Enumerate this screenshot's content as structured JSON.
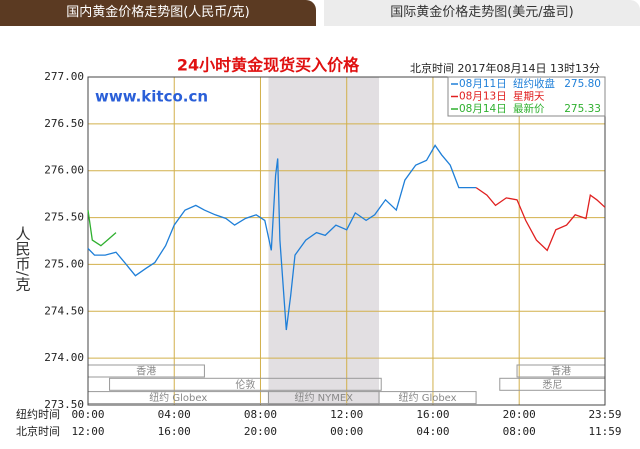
{
  "tabs": [
    "国内黄金价格走势图(人民币/克)",
    "国际黄金价格走势图(美元/盎司)"
  ],
  "chart_data": {
    "type": "line",
    "title": "24小时黄金现货买入价格",
    "timestamp": "北京时间 2017年08月14日 13时13分",
    "watermark": "www.kitco.cn",
    "y_label": "人民币/克",
    "ylim": [
      273.5,
      277.0
    ],
    "yticks": [
      {
        "value": 273.5,
        "label": "273.50"
      },
      {
        "value": 274.0,
        "label": "274.00"
      },
      {
        "value": 274.5,
        "label": "274.50"
      },
      {
        "value": 275.0,
        "label": "275.00"
      },
      {
        "value": 275.5,
        "label": "275.50"
      },
      {
        "value": 276.0,
        "label": "276.00"
      },
      {
        "value": 276.5,
        "label": "276.50"
      },
      {
        "value": 277.0,
        "label": "277.00"
      }
    ],
    "xlim": [
      0,
      23.98
    ],
    "x_row_labels": [
      "纽约时间",
      "北京时间"
    ],
    "xticks": [
      {
        "value": 0,
        "label": "00:00"
      },
      {
        "value": 4,
        "label": "04:00"
      },
      {
        "value": 8,
        "label": "08:00"
      },
      {
        "value": 12,
        "label": "12:00"
      },
      {
        "value": 16,
        "label": "16:00"
      },
      {
        "value": 20,
        "label": "20:00"
      },
      {
        "value": 23.98,
        "label": "23:59"
      }
    ],
    "x2ticks": [
      {
        "value": 0,
        "label": "12:00"
      },
      {
        "value": 4,
        "label": "16:00"
      },
      {
        "value": 8,
        "label": "20:00"
      },
      {
        "value": 12,
        "label": "00:00"
      },
      {
        "value": 16,
        "label": "04:00"
      },
      {
        "value": 20,
        "label": "08:00"
      },
      {
        "value": 23.98,
        "label": "11:59"
      }
    ],
    "grid": true,
    "grid_color": "#d2b04c",
    "shaded_range": [
      8.37,
      13.5
    ],
    "sessions": [
      [
        {
          "label": "香港",
          "start": 0,
          "end": 5.4
        },
        {
          "label": "香港",
          "start": 19.9,
          "end": 23.98
        }
      ],
      [
        {
          "label": "伦敦",
          "start": 1.0,
          "end": 13.6
        },
        {
          "label": "悉尼",
          "start": 19.1,
          "end": 23.98
        }
      ],
      [
        {
          "label": "纽约 Globex",
          "start": 0,
          "end": 8.37
        },
        {
          "label": "纽约 NYMEX",
          "start": 8.37,
          "end": 13.5
        },
        {
          "label": "纽约 Globex",
          "start": 13.5,
          "end": 18.0
        }
      ]
    ],
    "series": [
      {
        "name": "08月11日",
        "note": "纽约收盘",
        "note_value": "275.80",
        "color": "#1f7fd8",
        "x": [
          0,
          0.3,
          0.8,
          1.3,
          1.7,
          2.2,
          2.7,
          3.1,
          3.6,
          4.0,
          4.5,
          5.0,
          5.4,
          5.9,
          6.4,
          6.8,
          7.3,
          7.8,
          8.2,
          8.5,
          8.7,
          8.8,
          8.9,
          9.2,
          9.4,
          9.6,
          10.1,
          10.6,
          11.0,
          11.5,
          12.0,
          12.4,
          12.9,
          13.3,
          13.8,
          14.3,
          14.7,
          15.2,
          15.7,
          16.1,
          16.4,
          16.8,
          17.2,
          18.0
        ],
        "values": [
          275.17,
          275.1,
          275.1,
          275.13,
          275.02,
          274.88,
          274.96,
          275.02,
          275.2,
          275.42,
          275.58,
          275.63,
          275.58,
          275.53,
          275.49,
          275.42,
          275.49,
          275.53,
          275.47,
          275.15,
          275.95,
          276.13,
          275.26,
          274.3,
          274.67,
          275.1,
          275.26,
          275.34,
          275.31,
          275.42,
          275.37,
          275.55,
          275.47,
          275.53,
          275.69,
          275.58,
          275.9,
          276.06,
          276.11,
          276.27,
          276.17,
          276.06,
          275.82,
          275.82
        ]
      },
      {
        "name": "08月13日",
        "note": "星期天",
        "color": "#e02020",
        "x": [
          18.0,
          18.5,
          18.9,
          19.4,
          19.9,
          20.3,
          20.8,
          21.3,
          21.7,
          22.2,
          22.6,
          23.1,
          23.3,
          23.6,
          23.98
        ],
        "values": [
          275.82,
          275.74,
          275.63,
          275.71,
          275.69,
          275.47,
          275.26,
          275.15,
          275.37,
          275.42,
          275.53,
          275.49,
          275.74,
          275.69,
          275.61
        ]
      },
      {
        "name": "08月14日",
        "note": "最新价",
        "note_value": "275.33",
        "color": "#2fb02f",
        "x": [
          0,
          0.2,
          0.6,
          0.9,
          1.3
        ],
        "values": [
          275.58,
          275.26,
          275.2,
          275.26,
          275.34
        ]
      }
    ]
  }
}
